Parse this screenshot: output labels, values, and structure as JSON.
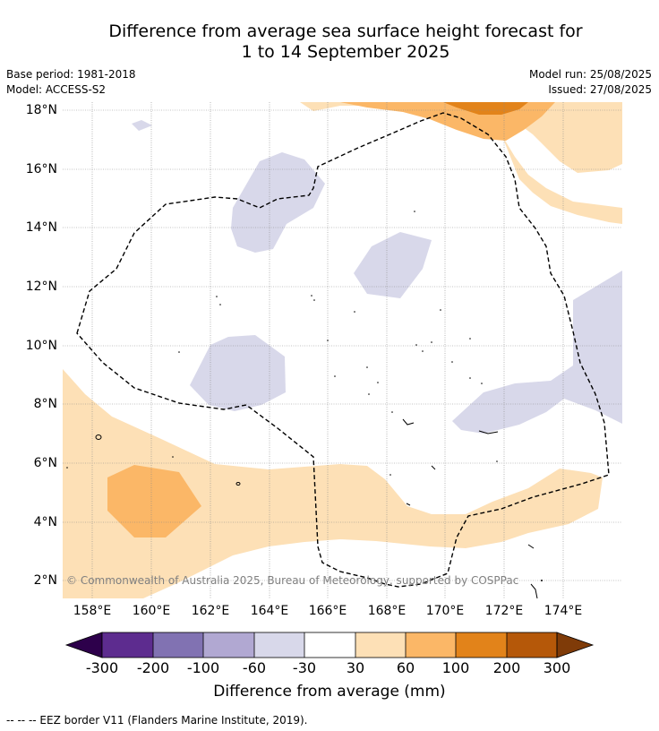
{
  "title": {
    "line1": "Difference from average sea surface height forecast for",
    "line2": "1 to 14 September 2025"
  },
  "meta": {
    "base_period": "Base period: 1981-2018",
    "model": "Model: ACCESS-S2",
    "model_run": "Model run: 25/08/2025",
    "issued": "Issued: 27/08/2025"
  },
  "map": {
    "lat_ticks": [
      "18°N",
      "16°N",
      "14°N",
      "12°N",
      "10°N",
      "8°N",
      "6°N",
      "4°N",
      "2°N"
    ],
    "lon_ticks": [
      "158°E",
      "160°E",
      "162°E",
      "164°E",
      "166°E",
      "168°E",
      "170°E",
      "172°E",
      "174°E"
    ],
    "copyright": "© Commonwealth of Australia 2025, Bureau of Meteorology, supported by COSPPac",
    "colors": {
      "pos_30_60": "#fde0b6",
      "pos_60_100": "#fbb767",
      "pos_100_200": "#e2831a",
      "neg_60_30": "#d8d8ea",
      "eez_border": "#000000"
    }
  },
  "colorbar": {
    "labels": [
      "-300",
      "-200",
      "-100",
      "-60",
      "-30",
      "30",
      "60",
      "100",
      "200",
      "300"
    ],
    "colors": [
      "#2d004b",
      "#5d2c8f",
      "#8172b2",
      "#b1a8d2",
      "#d8d8ea",
      "#ffffff",
      "#fde0b6",
      "#fbb767",
      "#e2831a",
      "#b55809",
      "#7f3b08"
    ],
    "title": "Difference from average (mm)"
  },
  "footnote": "--  --  -- EEZ border V11 (Flanders Marine Institute, 2019)."
}
